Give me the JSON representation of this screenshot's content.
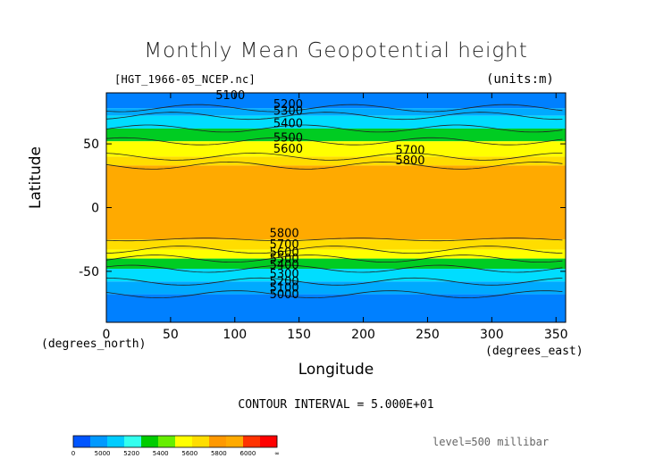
{
  "chart_data": {
    "type": "heatmap",
    "title": "Monthly Mean Geopotential height",
    "file_label": "[HGT_1966-05_NCEP.nc]",
    "units_label": "(units:m)",
    "xlabel": "Longitude",
    "ylabel": "Latitude",
    "x_unit": "(degrees_east)",
    "y_unit": "(degrees_north)",
    "xlim": [
      0,
      357.5
    ],
    "ylim": [
      -90,
      90
    ],
    "x_ticks": [
      0,
      50,
      100,
      150,
      200,
      250,
      300,
      350
    ],
    "y_ticks": [
      50,
      0,
      -50
    ],
    "contour_interval_text": "CONTOUR INTERVAL = 5.000E+01",
    "level_text": "level=500 millibar",
    "colorbar": {
      "tick_labels": [
        "0",
        "5000",
        "5200",
        "5400",
        "5600",
        "5800",
        "6000",
        "∞"
      ],
      "colors": [
        "#0055ff",
        "#0099ff",
        "#00ccff",
        "#33ffee",
        "#00cc00",
        "#66ee00",
        "#ffff00",
        "#ffdd00",
        "#ff9900",
        "#ffaa00",
        "#ff3300",
        "#ff0000"
      ]
    },
    "bands": [
      {
        "lat_top": 90,
        "lat_bottom": 78,
        "value": 5050,
        "color": "#0080ff"
      },
      {
        "lat_top": 78,
        "lat_bottom": 72,
        "value": 5150,
        "color": "#00aaff"
      },
      {
        "lat_top": 72,
        "lat_bottom": 62,
        "value": 5350,
        "color": "#00ddff"
      },
      {
        "lat_top": 62,
        "lat_bottom": 52,
        "value": 5450,
        "color": "#00cc22"
      },
      {
        "lat_top": 52,
        "lat_bottom": 40,
        "value": 5600,
        "color": "#ffff00"
      },
      {
        "lat_top": 40,
        "lat_bottom": 33,
        "value": 5750,
        "color": "#ffdd00"
      },
      {
        "lat_top": 33,
        "lat_bottom": -25,
        "value": 5850,
        "color": "#ffaa00"
      },
      {
        "lat_top": -25,
        "lat_bottom": -33,
        "value": 5750,
        "color": "#ffdd00"
      },
      {
        "lat_top": -33,
        "lat_bottom": -40,
        "value": 5650,
        "color": "#ffff00"
      },
      {
        "lat_top": -40,
        "lat_bottom": -48,
        "value": 5500,
        "color": "#00cc22"
      },
      {
        "lat_top": -48,
        "lat_bottom": -58,
        "value": 5350,
        "color": "#00ddff"
      },
      {
        "lat_top": -58,
        "lat_bottom": -68,
        "value": 5200,
        "color": "#00aaff"
      },
      {
        "lat_top": -68,
        "lat_bottom": -90,
        "value": 5050,
        "color": "#0080ff"
      }
    ],
    "contour_labels": [
      {
        "text": "5100",
        "lon": 85,
        "lat": 85
      },
      {
        "text": "5200",
        "lon": 130,
        "lat": 78
      },
      {
        "text": "5300",
        "lon": 130,
        "lat": 73
      },
      {
        "text": "5400",
        "lon": 130,
        "lat": 63
      },
      {
        "text": "5500",
        "lon": 130,
        "lat": 52
      },
      {
        "text": "5600",
        "lon": 130,
        "lat": 43
      },
      {
        "text": "5700",
        "lon": 225,
        "lat": 42
      },
      {
        "text": "5800",
        "lon": 225,
        "lat": 34
      },
      {
        "text": "5800",
        "lon": 127,
        "lat": -23
      },
      {
        "text": "5700",
        "lon": 127,
        "lat": -32
      },
      {
        "text": "5600",
        "lon": 127,
        "lat": -38
      },
      {
        "text": "5500",
        "lon": 127,
        "lat": -43
      },
      {
        "text": "5400",
        "lon": 127,
        "lat": -48
      },
      {
        "text": "5300",
        "lon": 127,
        "lat": -55
      },
      {
        "text": "5200",
        "lon": 127,
        "lat": -61
      },
      {
        "text": "5100",
        "lon": 127,
        "lat": -66
      },
      {
        "text": "5000",
        "lon": 127,
        "lat": -71
      }
    ],
    "grid": false
  }
}
